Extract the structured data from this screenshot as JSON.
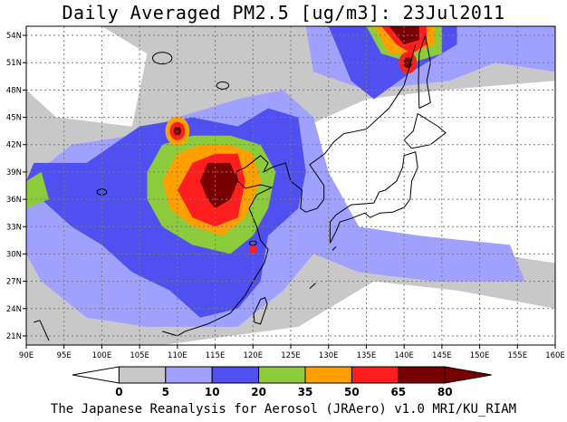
{
  "title": "Daily Averaged PM2.5 [ug/m3]: 23Jul2011",
  "credit": "The Japanese Reanalysis for Aerosol (JRAero) v1.0 MRI/KU_RIAM",
  "map": {
    "lon_range": [
      90,
      160
    ],
    "lat_range": [
      20,
      55
    ],
    "lon_ticks": [
      "90E",
      "95E",
      "100E",
      "105E",
      "110E",
      "115E",
      "120E",
      "125E",
      "130E",
      "135E",
      "140E",
      "145E",
      "150E",
      "155E",
      "160E"
    ],
    "lat_ticks": [
      "54N",
      "51N",
      "48N",
      "45N",
      "42N",
      "39N",
      "36N",
      "33N",
      "30N",
      "27N",
      "24N",
      "21N"
    ],
    "gridlines": "dotted"
  },
  "colorbar": {
    "levels": [
      "0",
      "5",
      "10",
      "20",
      "35",
      "50",
      "65",
      "80"
    ],
    "colors": [
      "#ffffff",
      "#c8c8c8",
      "#a0a0ff",
      "#5050f0",
      "#8ccc3c",
      "#ffa000",
      "#ff1e1e",
      "#780000"
    ]
  }
}
